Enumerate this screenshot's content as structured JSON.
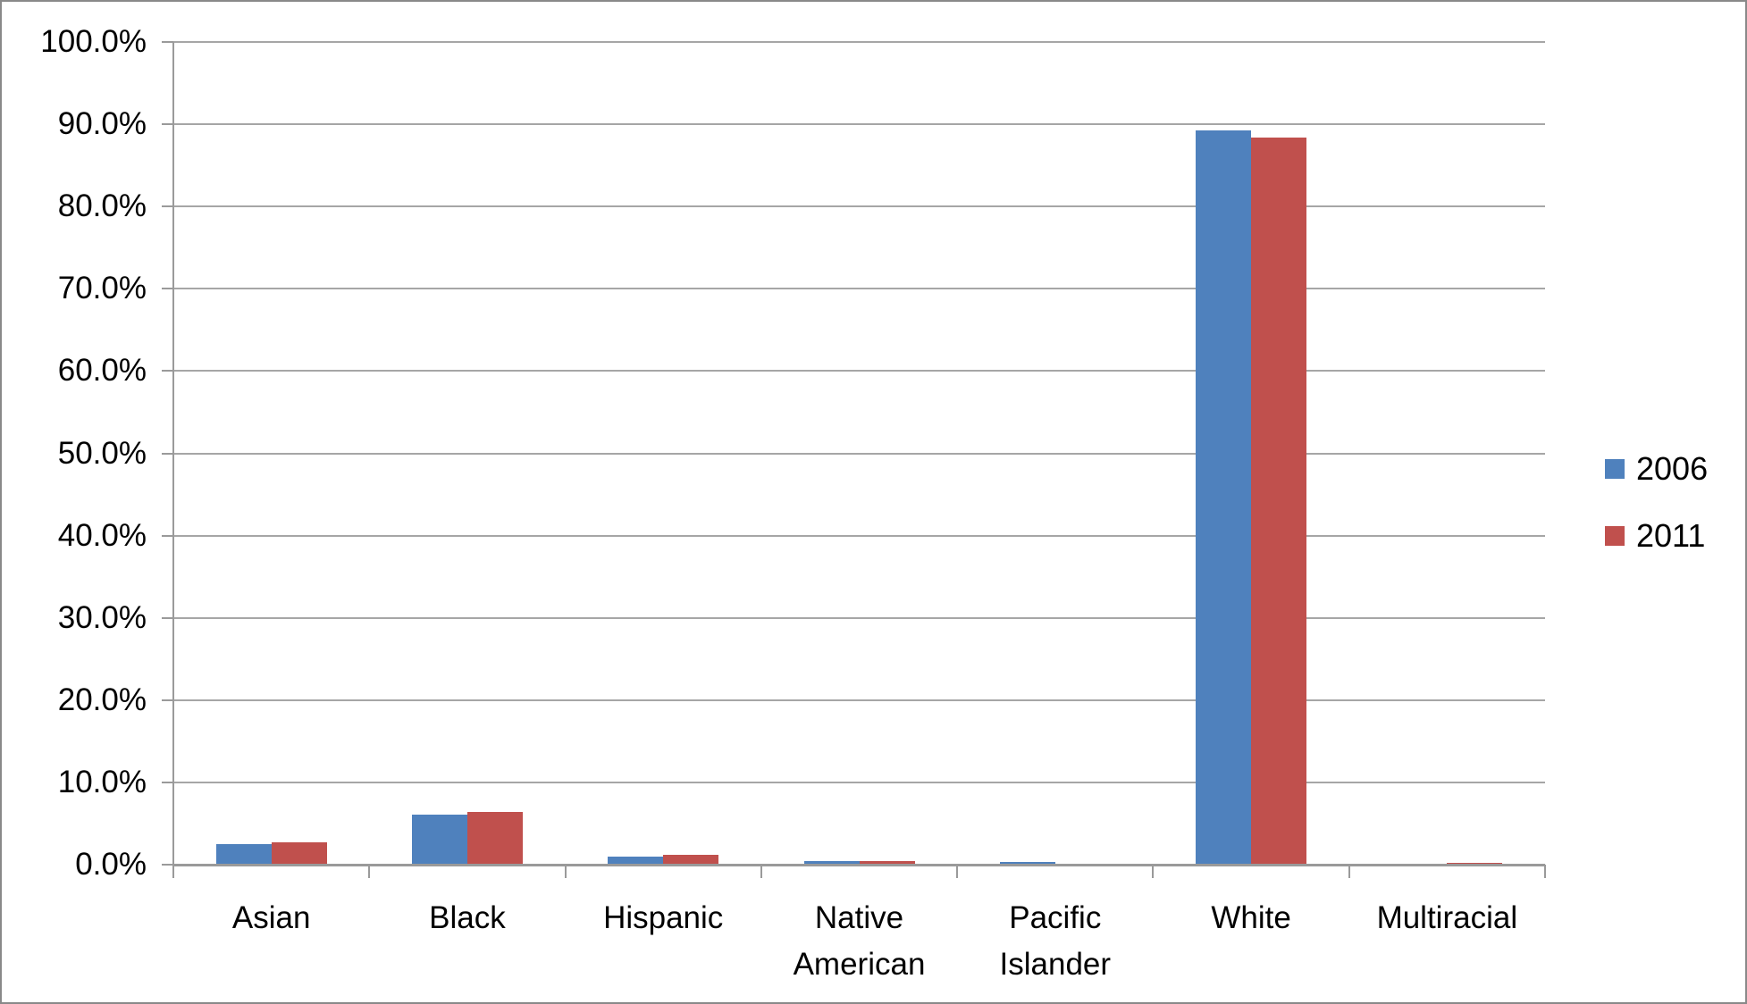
{
  "chart_data": {
    "type": "bar",
    "title": "",
    "xlabel": "",
    "ylabel": "",
    "categories": [
      "Asian",
      "Black",
      "Hispanic",
      "Native American",
      "Pacific Islander",
      "White",
      "Multiracial"
    ],
    "series": [
      {
        "name": "2006",
        "color": "#4F81BD",
        "values": [
          2.5,
          6.1,
          1.0,
          0.45,
          0.3,
          89.3,
          0.0
        ]
      },
      {
        "name": "2011",
        "color": "#C0504D",
        "values": [
          2.7,
          6.4,
          1.2,
          0.4,
          0.15,
          88.4,
          0.2
        ]
      }
    ],
    "y_ticks": [
      "0.0%",
      "10.0%",
      "20.0%",
      "30.0%",
      "40.0%",
      "50.0%",
      "60.0%",
      "70.0%",
      "80.0%",
      "90.0%",
      "100.0%"
    ],
    "ylim": [
      0,
      100
    ],
    "grid": true,
    "legend_position": "right",
    "colors": {
      "gridline": "#A6A6A6",
      "axis": "#9A9A9A",
      "border": "#898989",
      "background": "#FFFFFF"
    }
  }
}
